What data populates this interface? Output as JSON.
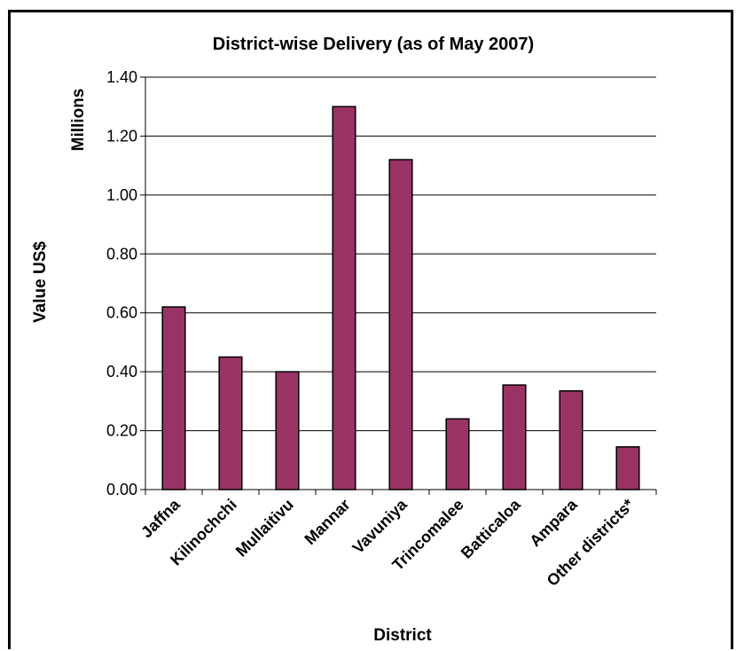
{
  "chart_data": {
    "type": "bar",
    "title": "District-wise Delivery (as of May 2007)",
    "xlabel": "District",
    "ylabel": "Value US$",
    "yunit": "Millions",
    "categories": [
      "Jaffna",
      "Kilinochchi",
      "Mullaitivu",
      "Mannar",
      "Vavuniya",
      "Trincomalee",
      "Batticaloa",
      "Ampara",
      "Other districts*"
    ],
    "values": [
      0.62,
      0.45,
      0.4,
      1.3,
      1.12,
      0.24,
      0.355,
      0.335,
      0.145
    ],
    "ylim": [
      0,
      1.4
    ],
    "yticks": [
      "0.00",
      "0.20",
      "0.40",
      "0.60",
      "0.80",
      "1.00",
      "1.20",
      "1.40"
    ],
    "grid": true,
    "legend": "none",
    "bar_color": "#993366",
    "bar_edge_color": "#000000"
  }
}
